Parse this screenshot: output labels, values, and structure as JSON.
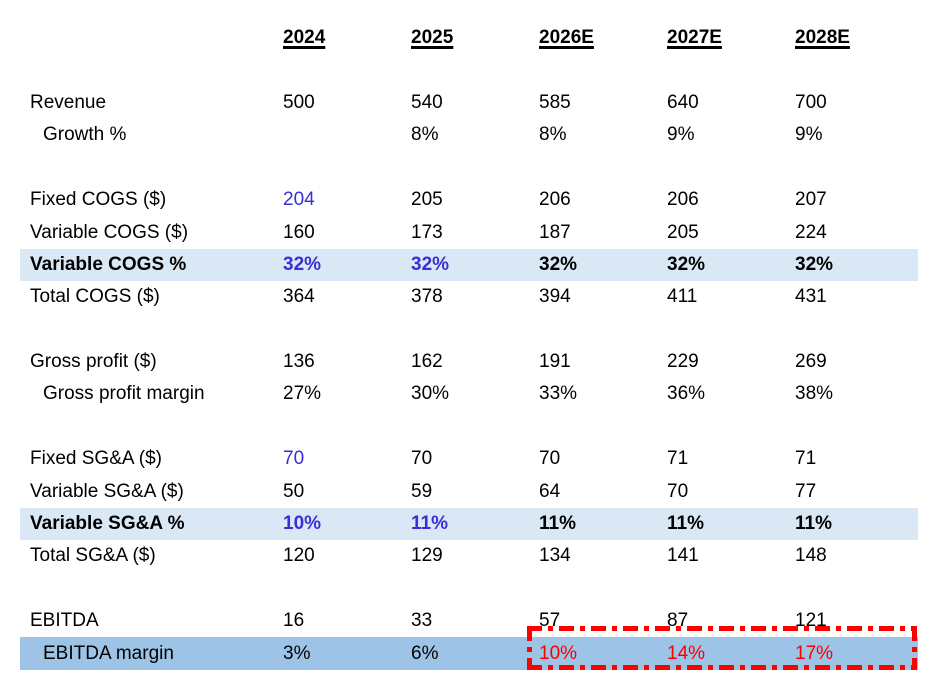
{
  "page": {
    "background": "#FFFFFF"
  },
  "colors": {
    "text": "#000000",
    "input_blue": "#372FD7",
    "forecast_red": "#FF0000",
    "band_light": "#DAE8F5",
    "band_medium": "#9DC3E6"
  },
  "table": {
    "columns": [
      {
        "label": "2024"
      },
      {
        "label": "2025"
      },
      {
        "label": "2026E"
      },
      {
        "label": "2027E"
      },
      {
        "label": "2028E"
      }
    ],
    "rows": [
      {
        "name": "revenue",
        "label": "Revenue",
        "gap_before": true,
        "values": [
          "500",
          "540",
          "585",
          "640",
          "700"
        ]
      },
      {
        "name": "growth-pct",
        "label": "Growth %",
        "indent": true,
        "values": [
          "",
          "8%",
          "8%",
          "9%",
          "9%"
        ]
      },
      {
        "name": "fixed-cogs",
        "label": "Fixed COGS ($)",
        "gap_before": true,
        "values": [
          "204",
          "205",
          "206",
          "206",
          "207"
        ],
        "value_colors": [
          "blue",
          "",
          "",
          "",
          ""
        ]
      },
      {
        "name": "variable-cogs",
        "label": "Variable COGS ($)",
        "values": [
          "160",
          "173",
          "187",
          "205",
          "224"
        ]
      },
      {
        "name": "variable-cogs-pct",
        "label": "Variable COGS %",
        "bold": true,
        "band": "light",
        "values": [
          "32%",
          "32%",
          "32%",
          "32%",
          "32%"
        ],
        "value_colors": [
          "blue",
          "blue",
          "",
          "",
          ""
        ]
      },
      {
        "name": "total-cogs",
        "label": "Total COGS ($)",
        "values": [
          "364",
          "378",
          "394",
          "411",
          "431"
        ]
      },
      {
        "name": "gross-profit",
        "label": "Gross profit ($)",
        "gap_before": true,
        "values": [
          "136",
          "162",
          "191",
          "229",
          "269"
        ]
      },
      {
        "name": "gross-profit-margin",
        "label": "Gross profit margin",
        "indent": true,
        "values": [
          "27%",
          "30%",
          "33%",
          "36%",
          "38%"
        ]
      },
      {
        "name": "fixed-sga",
        "label": "Fixed SG&A ($)",
        "gap_before": true,
        "values": [
          "70",
          "70",
          "70",
          "71",
          "71"
        ],
        "value_colors": [
          "blue",
          "",
          "",
          "",
          ""
        ]
      },
      {
        "name": "variable-sga",
        "label": "Variable SG&A ($)",
        "values": [
          "50",
          "59",
          "64",
          "70",
          "77"
        ]
      },
      {
        "name": "variable-sga-pct",
        "label": "Variable SG&A %",
        "bold": true,
        "band": "light",
        "values": [
          "10%",
          "11%",
          "11%",
          "11%",
          "11%"
        ],
        "value_colors": [
          "blue",
          "blue",
          "",
          "",
          ""
        ]
      },
      {
        "name": "total-sga",
        "label": "Total SG&A ($)",
        "values": [
          "120",
          "129",
          "134",
          "141",
          "148"
        ]
      },
      {
        "name": "ebitda",
        "label": "EBITDA",
        "gap_before": true,
        "values": [
          "16",
          "33",
          "57",
          "87",
          "121"
        ]
      },
      {
        "name": "ebitda-margin",
        "label": "EBITDA margin",
        "indent": true,
        "band": "medium",
        "values": [
          "3%",
          "6%",
          "10%",
          "14%",
          "17%"
        ],
        "value_colors": [
          "",
          "",
          "red",
          "red",
          "red"
        ]
      }
    ],
    "forecast_box": {
      "applies_to_row": "ebitda-margin",
      "columns": [
        "2026E",
        "2027E",
        "2028E"
      ]
    }
  }
}
